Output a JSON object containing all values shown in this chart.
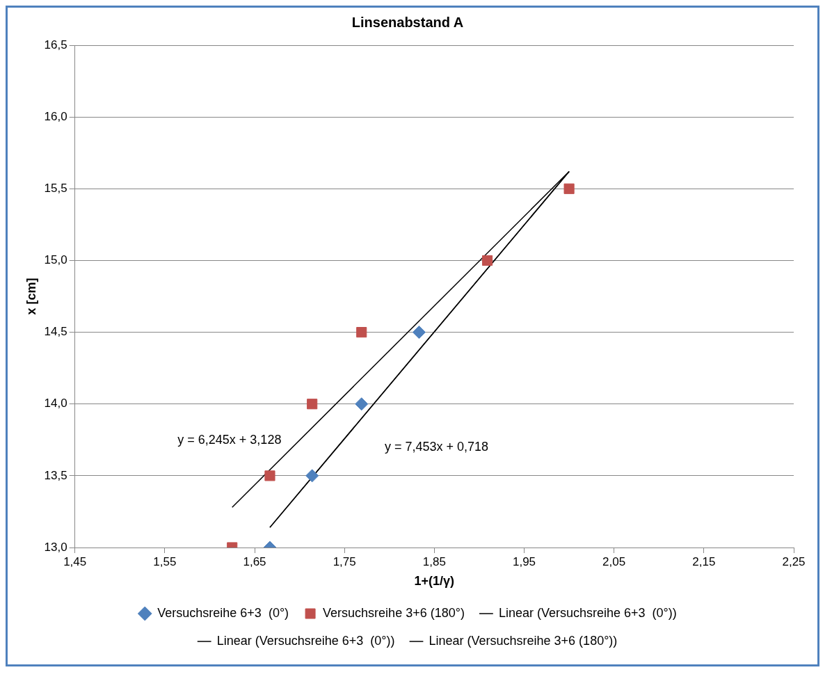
{
  "chart_data": {
    "type": "scatter",
    "title": "Linsenabstand A",
    "xlabel": "1+(1/γ)",
    "ylabel": "x [cm]",
    "xlim": [
      1.45,
      2.25
    ],
    "xticks": [
      {
        "value": 1.45,
        "label": "1,45"
      },
      {
        "value": 1.55,
        "label": "1,55"
      },
      {
        "value": 1.65,
        "label": "1,65"
      },
      {
        "value": 1.75,
        "label": "1,75"
      },
      {
        "value": 1.85,
        "label": "1,85"
      },
      {
        "value": 1.95,
        "label": "1,95"
      },
      {
        "value": 2.05,
        "label": "2,05"
      },
      {
        "value": 2.15,
        "label": "2,15"
      },
      {
        "value": 2.25,
        "label": "2,25"
      }
    ],
    "ylim": [
      13,
      16.5
    ],
    "yticks": [
      {
        "value": 13,
        "label": "13,0"
      },
      {
        "value": 13.5,
        "label": "13,5"
      },
      {
        "value": 14,
        "label": "14,0"
      },
      {
        "value": 14.5,
        "label": "14,5"
      },
      {
        "value": 15,
        "label": "15,0"
      },
      {
        "value": 15.5,
        "label": "15,5"
      },
      {
        "value": 16,
        "label": "16,0"
      },
      {
        "value": 16.5,
        "label": "16,5"
      }
    ],
    "grid": "y",
    "legend": "bottom",
    "series": [
      {
        "name": "Versuchsreihe 6+3  (0°)",
        "type": "scatter",
        "marker": "diamond",
        "color": "#4f81bd",
        "x": [
          1.667,
          1.714,
          1.769,
          1.833
        ],
        "values": [
          13.0,
          13.5,
          14.0,
          14.5
        ]
      },
      {
        "name": "Versuchsreihe 3+6 (180°)",
        "type": "scatter",
        "marker": "square",
        "color": "#c0504d",
        "x": [
          1.625,
          1.667,
          1.714,
          1.769,
          1.909,
          2.0
        ],
        "values": [
          13.0,
          13.5,
          14.0,
          14.5,
          15.0,
          15.5
        ]
      },
      {
        "name": "Linear (Versuchsreihe 6+3  (0°))",
        "type": "line",
        "marker": "none",
        "color": "#000000",
        "x": [
          1.667,
          2.0
        ],
        "values": [
          13.14,
          15.62
        ]
      },
      {
        "name": "Linear (Versuchsreihe 6+3  (0°))",
        "type": "line",
        "marker": "none",
        "color": "#000000",
        "x": [
          1.667,
          2.0
        ],
        "values": [
          13.14,
          15.62
        ]
      },
      {
        "name": "Linear (Versuchsreihe 3+6 (180°))",
        "type": "line",
        "marker": "none",
        "color": "#000000",
        "x": [
          1.625,
          2.0
        ],
        "values": [
          13.28,
          15.62
        ]
      }
    ],
    "annotations": [
      "y = 6,245x + 3,128",
      "y = 7,453x + 0,718"
    ]
  }
}
